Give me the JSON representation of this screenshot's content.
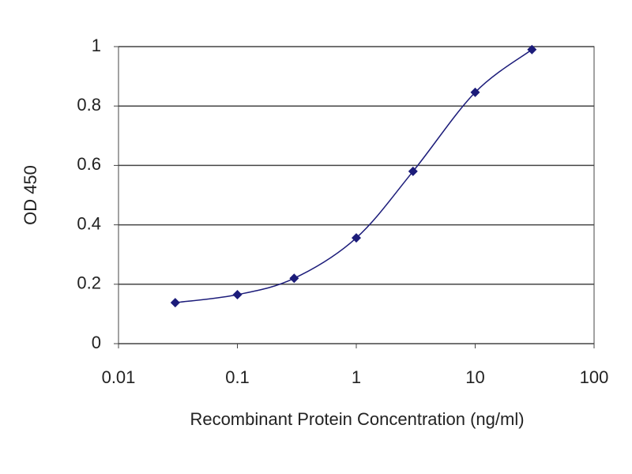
{
  "chart_data": {
    "type": "line",
    "x_label": "Recombinant Protein Concentration (ng/ml)",
    "y_label": "OD 450",
    "x": [
      0.03,
      0.1,
      0.3,
      1,
      3,
      10,
      30
    ],
    "series": [
      {
        "color": "#1c1c7a",
        "values": [
          0.138,
          0.165,
          0.22,
          0.356,
          0.58,
          0.846,
          0.99
        ]
      }
    ],
    "xscale": "log",
    "xlim": [
      0.01,
      100
    ],
    "xticks": [
      0.01,
      0.1,
      1,
      10,
      100
    ],
    "ylim": [
      0,
      1
    ],
    "yticks": [
      0,
      0.2,
      0.4,
      0.6,
      0.8,
      1
    ],
    "grid": true
  }
}
